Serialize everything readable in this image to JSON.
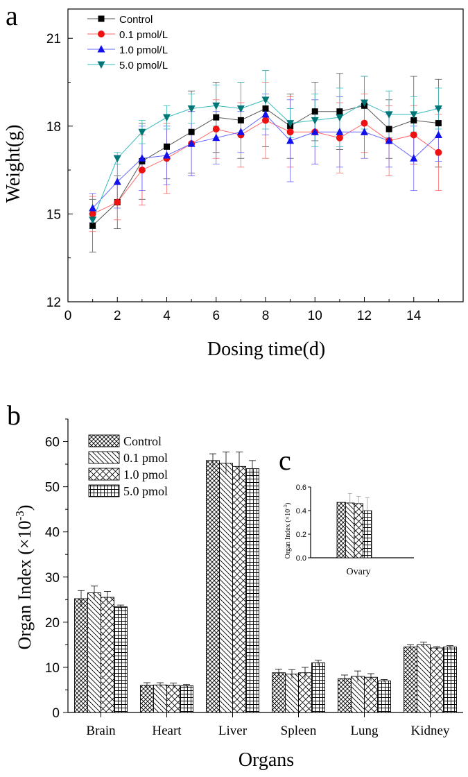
{
  "chart_data": [
    {
      "id": "a",
      "panel_label": "a",
      "type": "line",
      "xlabel": "Dosing time(d)",
      "ylabel": "Weight(g)",
      "xlim": [
        0,
        16
      ],
      "ylim": [
        12,
        22
      ],
      "xticks": [
        0,
        2,
        4,
        6,
        8,
        10,
        12,
        14
      ],
      "yticks": [
        12,
        15,
        18,
        21
      ],
      "x": [
        1,
        2,
        3,
        4,
        5,
        6,
        7,
        8,
        9,
        10,
        11,
        12,
        13,
        14,
        15
      ],
      "legend_position": "top-left",
      "series": [
        {
          "name": "Control",
          "marker": "square",
          "color": "#000000",
          "line_color": "#555555",
          "values": [
            14.6,
            15.4,
            16.8,
            17.3,
            17.8,
            18.3,
            18.2,
            18.6,
            18.0,
            18.5,
            18.5,
            18.7,
            17.9,
            18.2,
            18.1
          ],
          "errors": [
            0.9,
            0.9,
            1.3,
            1.1,
            1.4,
            1.2,
            1.3,
            1.3,
            1.1,
            1.0,
            1.3,
            1.0,
            1.0,
            1.5,
            1.5
          ]
        },
        {
          "name": "0.1 pmol/L",
          "marker": "circle",
          "color": "#ee1111",
          "line_color": "#ff6666",
          "values": [
            15.0,
            15.4,
            16.5,
            16.9,
            17.4,
            17.9,
            17.7,
            18.2,
            17.8,
            17.8,
            17.6,
            18.1,
            17.5,
            17.7,
            17.1
          ],
          "errors": [
            0.6,
            0.6,
            1.2,
            1.2,
            1.1,
            1.0,
            1.1,
            1.3,
            1.2,
            1.1,
            1.2,
            1.0,
            1.2,
            1.0,
            1.3
          ]
        },
        {
          "name": "1.0 pmol/L",
          "marker": "triangle-up",
          "color": "#1111ee",
          "line_color": "#6666ff",
          "values": [
            15.2,
            16.1,
            16.9,
            17.0,
            17.4,
            17.6,
            17.8,
            18.4,
            17.5,
            17.8,
            17.8,
            17.8,
            17.5,
            16.9,
            17.7
          ],
          "errors": [
            0.5,
            0.9,
            1.1,
            1.0,
            1.1,
            0.9,
            0.7,
            0.7,
            1.4,
            1.1,
            1.2,
            0.9,
            0.9,
            1.1,
            0.9
          ]
        },
        {
          "name": "5.0 pmol/L",
          "marker": "triangle-down",
          "color": "#007777",
          "line_color": "#33bbbb",
          "values": [
            14.8,
            16.9,
            17.8,
            18.3,
            18.6,
            18.7,
            18.6,
            18.9,
            18.1,
            18.2,
            18.3,
            18.8,
            18.4,
            18.4,
            18.6
          ],
          "errors": [
            0.3,
            0.2,
            0.4,
            0.4,
            0.5,
            0.7,
            0.9,
            1.0,
            0.5,
            0.9,
            1.0,
            0.9,
            0.8,
            0.6,
            0.7
          ]
        }
      ]
    },
    {
      "id": "b",
      "panel_label": "b",
      "type": "bar",
      "xlabel": "Organs",
      "ylabel": "Organ Index (×10",
      "ylabel_sup": "-3",
      "ylabel_close": ")",
      "ylim": [
        0,
        65
      ],
      "yticks": [
        0,
        10,
        20,
        30,
        40,
        50,
        60
      ],
      "categories": [
        "Brain",
        "Heart",
        "Liver",
        "Spleen",
        "Lung",
        "Kidney"
      ],
      "legend_position": "top-left",
      "series": [
        {
          "name": "Control",
          "pattern": "crosshatch",
          "values": [
            25.2,
            6.0,
            55.8,
            8.8,
            7.5,
            14.5
          ],
          "errors": [
            1.8,
            0.6,
            1.5,
            0.8,
            0.8,
            0.5
          ]
        },
        {
          "name": "0.1 pmol",
          "pattern": "diagonal",
          "values": [
            26.5,
            6.1,
            55.2,
            8.5,
            8.0,
            15.0
          ],
          "errors": [
            1.5,
            0.5,
            2.5,
            1.0,
            1.2,
            0.6
          ]
        },
        {
          "name": "1.0 pmol",
          "pattern": "diamond",
          "values": [
            25.5,
            6.0,
            54.5,
            8.8,
            7.8,
            14.3
          ],
          "errors": [
            1.3,
            0.5,
            3.2,
            1.2,
            0.8,
            0.3
          ]
        },
        {
          "name": "5.0 pmol",
          "pattern": "grid",
          "values": [
            23.4,
            5.9,
            54.0,
            11.0,
            7.0,
            14.5
          ],
          "errors": [
            0.4,
            0.3,
            1.8,
            0.6,
            0.3,
            0.3
          ]
        }
      ]
    },
    {
      "id": "c",
      "panel_label": "c",
      "type": "bar",
      "xlabel": "Ovary",
      "ylabel": "Organ Index (×10",
      "ylabel_sup": "-3",
      "ylabel_close": ")",
      "ylim": [
        0,
        0.6
      ],
      "yticks": [
        "0.0",
        "0.2",
        "0.4",
        "0.6"
      ],
      "categories": [
        "Ovary"
      ],
      "series": [
        {
          "name": "Control",
          "pattern": "crosshatch",
          "values": [
            0.47
          ],
          "errors": [
            0.0
          ]
        },
        {
          "name": "0.1 pmol",
          "pattern": "diagonal",
          "values": [
            0.465
          ],
          "errors": [
            0.08
          ]
        },
        {
          "name": "1.0 pmol",
          "pattern": "diamond",
          "values": [
            0.46
          ],
          "errors": [
            0.06
          ]
        },
        {
          "name": "5.0 pmol",
          "pattern": "grid",
          "values": [
            0.4
          ],
          "errors": [
            0.11
          ]
        }
      ]
    }
  ]
}
